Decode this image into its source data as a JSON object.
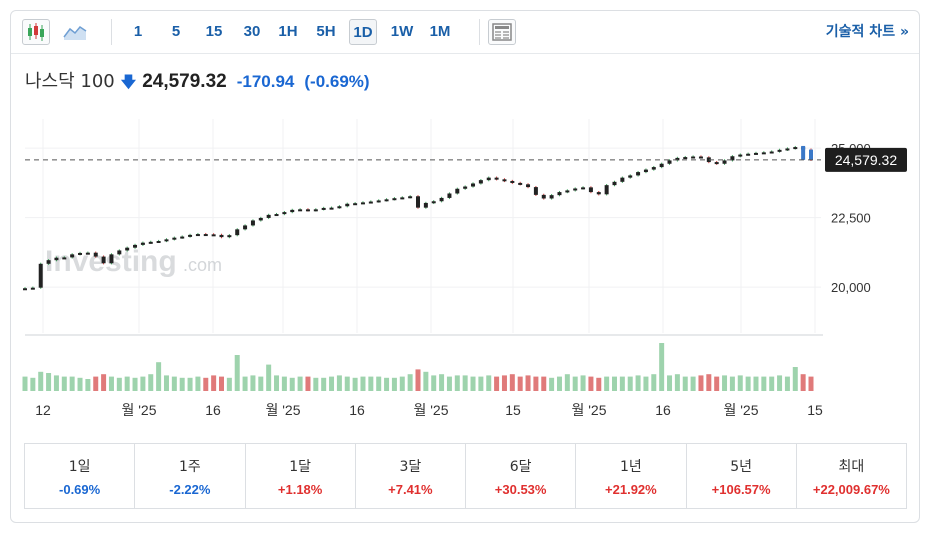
{
  "toolbar": {
    "chart_icons": [
      "candlestick-icon",
      "area-chart-icon"
    ],
    "timeframes": [
      "1",
      "5",
      "15",
      "30",
      "1H",
      "5H",
      "1D",
      "1W",
      "1M"
    ],
    "selected_timeframe": "1D",
    "layout_icon": "layout-icon",
    "advanced_chart_label": "기술적 차트 »"
  },
  "quote": {
    "name": "나스닥 100",
    "direction_icon": "down-arrow-icon",
    "price": "24,579.32",
    "change": "-170.94",
    "change_pct": "(-0.69%)",
    "down_color": "#1a67d2",
    "up_color": "#e0302f"
  },
  "watermark": {
    "brand": "Investing",
    "suffix": ".com"
  },
  "chart_data": {
    "type": "candlestick",
    "y_ticks": [
      "25,000",
      "22,500",
      "20,000"
    ],
    "y_tick_values": [
      25000,
      22500,
      20000
    ],
    "ylim": [
      18350,
      26050
    ],
    "current_price_label": "24,579.32",
    "current_price": 24579.32,
    "x_tick_labels": [
      "12",
      "월 '25",
      "16",
      "월 '25",
      "16",
      "월 '25",
      "15",
      "월 '25",
      "16",
      "월 '25",
      "15"
    ],
    "close_series": [
      19960,
      19980,
      20840,
      20970,
      21060,
      21070,
      21180,
      21230,
      21240,
      21100,
      20860,
      21180,
      21320,
      21420,
      21520,
      21600,
      21630,
      21660,
      21720,
      21780,
      21820,
      21880,
      21910,
      21900,
      21880,
      21800,
      21870,
      22080,
      22220,
      22400,
      22490,
      22600,
      22630,
      22700,
      22780,
      22800,
      22760,
      22800,
      22850,
      22860,
      22910,
      23000,
      23020,
      23050,
      23080,
      23120,
      23160,
      23200,
      23230,
      23270,
      22860,
      23030,
      23090,
      23210,
      23370,
      23540,
      23620,
      23730,
      23850,
      23940,
      23880,
      23820,
      23750,
      23700,
      23600,
      23320,
      23190,
      23310,
      23420,
      23480,
      23550,
      23590,
      23420,
      23340,
      23670,
      23790,
      23940,
      24020,
      24140,
      24230,
      24320,
      24440,
      24560,
      24650,
      24680,
      24700,
      24670,
      24500,
      24440,
      24560,
      24710,
      24770,
      24800,
      24830,
      24850,
      24880,
      24940,
      24990,
      25040,
      24950,
      24580
    ],
    "volume_series": [
      12,
      11,
      16,
      15,
      13,
      12,
      12,
      11,
      10,
      12,
      14,
      12,
      11,
      12,
      11,
      12,
      14,
      24,
      13,
      12,
      11,
      11,
      12,
      11,
      13,
      12,
      11,
      30,
      12,
      13,
      12,
      22,
      13,
      12,
      11,
      12,
      12,
      11,
      11,
      12,
      13,
      12,
      11,
      12,
      12,
      12,
      11,
      11,
      12,
      14,
      18,
      16,
      13,
      14,
      12,
      13,
      13,
      12,
      12,
      13,
      12,
      13,
      14,
      12,
      13,
      12,
      12,
      11,
      12,
      14,
      12,
      13,
      12,
      11,
      12,
      12,
      12,
      12,
      13,
      12,
      14,
      40,
      13,
      14,
      12,
      12,
      13,
      14,
      12,
      13,
      12,
      13,
      12,
      12,
      12,
      12,
      13,
      12,
      20,
      14,
      12
    ],
    "volume_down_color": "#e07a7a",
    "volume_up_color": "#9ed3ad",
    "candle_up_color": "#3aa65a",
    "candle_down_color": "#d23a3a",
    "last_candle_color": "#3a78c8"
  },
  "periods": [
    {
      "label": "1일",
      "value": "-0.69%",
      "dir": "down"
    },
    {
      "label": "1주",
      "value": "-2.22%",
      "dir": "down"
    },
    {
      "label": "1달",
      "value": "+1.18%",
      "dir": "up"
    },
    {
      "label": "3달",
      "value": "+7.41%",
      "dir": "up"
    },
    {
      "label": "6달",
      "value": "+30.53%",
      "dir": "up"
    },
    {
      "label": "1년",
      "value": "+21.92%",
      "dir": "up"
    },
    {
      "label": "5년",
      "value": "+106.57%",
      "dir": "up"
    },
    {
      "label": "최대",
      "value": "+22,009.67%",
      "dir": "up"
    }
  ]
}
